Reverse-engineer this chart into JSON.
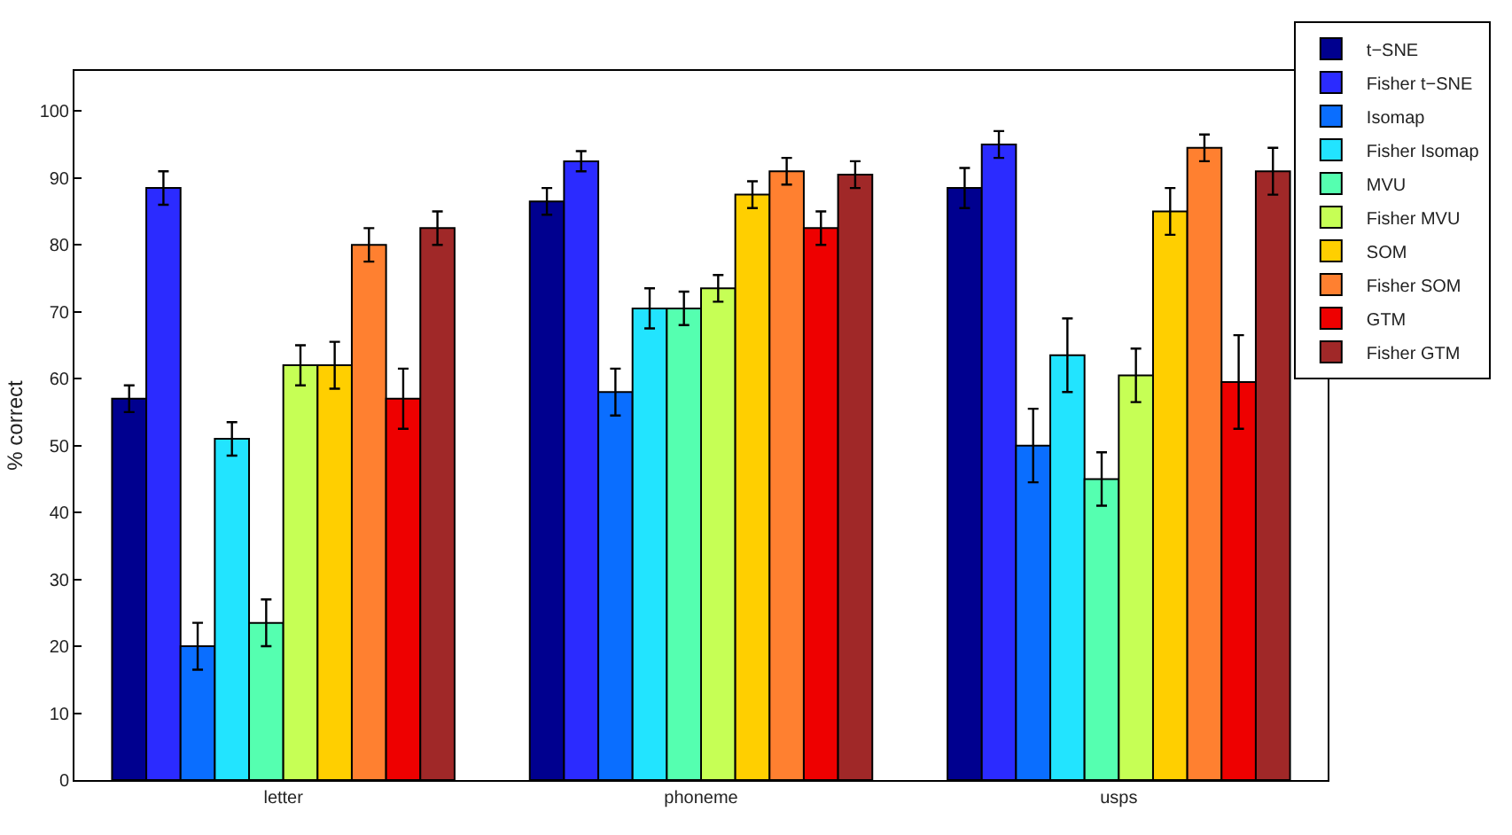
{
  "chart_data": {
    "type": "bar",
    "ylabel": "% correct",
    "categories": [
      "letter",
      "phoneme",
      "usps"
    ],
    "ylim": [
      0,
      106
    ],
    "yticks": [
      0,
      10,
      20,
      30,
      40,
      50,
      60,
      70,
      80,
      90,
      100
    ],
    "grid": false,
    "legend": "top right",
    "series": [
      {
        "name": "t−SNE",
        "color": "#00008f",
        "values": [
          57,
          86.5,
          88.5
        ],
        "errors": [
          2,
          2,
          3
        ]
      },
      {
        "name": "Fisher t−SNE",
        "color": "#2b2bff",
        "values": [
          88.5,
          92.5,
          95
        ],
        "errors": [
          2.5,
          1.5,
          2
        ]
      },
      {
        "name": "Isomap",
        "color": "#0a6eff",
        "values": [
          20,
          58,
          50
        ],
        "errors": [
          3.5,
          3.5,
          5.5
        ]
      },
      {
        "name": "Fisher Isomap",
        "color": "#22e4ff",
        "values": [
          51,
          70.5,
          63.5
        ],
        "errors": [
          2.5,
          3,
          5.5
        ]
      },
      {
        "name": "MVU",
        "color": "#55ffb0",
        "values": [
          23.5,
          70.5,
          45
        ],
        "errors": [
          3.5,
          2.5,
          4
        ]
      },
      {
        "name": "Fisher MVU",
        "color": "#c6ff55",
        "values": [
          62,
          73.5,
          60.5
        ],
        "errors": [
          3,
          2,
          4
        ]
      },
      {
        "name": "SOM",
        "color": "#ffcf00",
        "values": [
          62,
          87.5,
          85
        ],
        "errors": [
          3.5,
          2,
          3.5
        ]
      },
      {
        "name": "Fisher SOM",
        "color": "#ff8030",
        "values": [
          80,
          91,
          94.5
        ],
        "errors": [
          2.5,
          2,
          2
        ]
      },
      {
        "name": "GTM",
        "color": "#ee0000",
        "values": [
          57,
          82.5,
          59.5
        ],
        "errors": [
          4.5,
          2.5,
          7
        ]
      },
      {
        "name": "Fisher GTM",
        "color": "#a02828",
        "values": [
          82.5,
          90.5,
          91
        ],
        "errors": [
          2.5,
          2,
          3.5
        ]
      }
    ]
  }
}
